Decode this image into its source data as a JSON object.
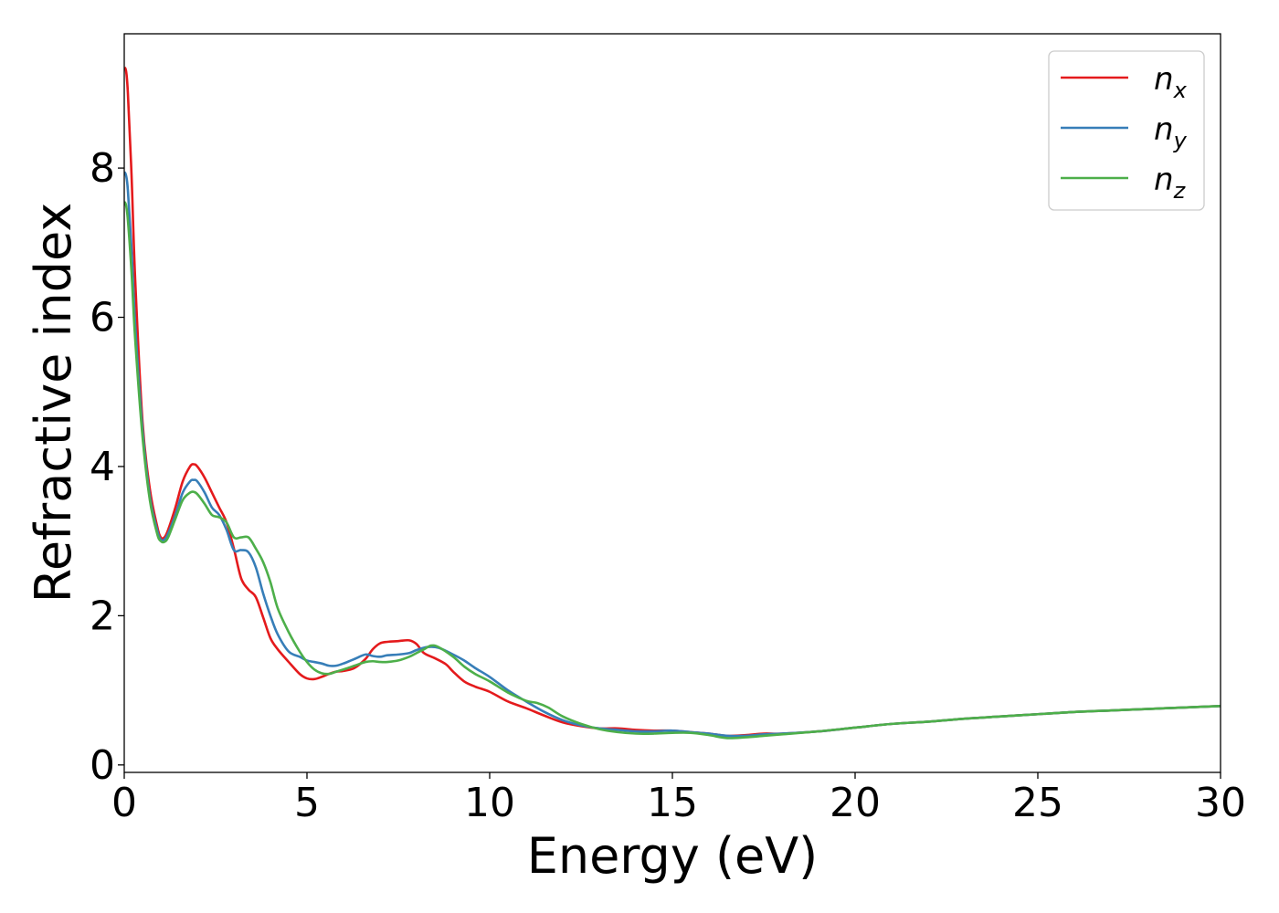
{
  "chart_data": {
    "type": "line",
    "title": "",
    "xlabel": "Energy (eV)",
    "ylabel": "Refractive index",
    "xlim": [
      0,
      30
    ],
    "ylim": [
      -0.1,
      9.8
    ],
    "xticks": [
      0,
      5,
      10,
      15,
      20,
      25,
      30
    ],
    "yticks": [
      0,
      2,
      4,
      6,
      8
    ],
    "xtick_labels": [
      "0",
      "5",
      "10",
      "15",
      "20",
      "25",
      "30"
    ],
    "ytick_labels": [
      "0",
      "2",
      "4",
      "6",
      "8"
    ],
    "grid": false,
    "legend_position": "top-right",
    "series": [
      {
        "name": "n_x",
        "legend_base": "n",
        "legend_sub": "x",
        "color": "#e41a1c",
        "x": [
          0,
          0.05,
          0.1,
          0.2,
          0.3,
          0.5,
          0.7,
          0.9,
          1.0,
          1.1,
          1.2,
          1.4,
          1.6,
          1.8,
          1.9,
          2.0,
          2.2,
          2.4,
          2.6,
          2.8,
          3.0,
          3.2,
          3.4,
          3.6,
          3.8,
          4.0,
          4.2,
          4.5,
          4.8,
          5.0,
          5.2,
          5.4,
          5.6,
          5.8,
          6.0,
          6.3,
          6.6,
          6.8,
          7.0,
          7.2,
          7.5,
          7.8,
          8.0,
          8.2,
          8.5,
          8.8,
          9.0,
          9.3,
          9.6,
          10.0,
          10.5,
          11.0,
          11.5,
          12.0,
          12.5,
          13.0,
          13.5,
          14.0,
          14.5,
          15.0,
          15.5,
          16.0,
          16.5,
          17.0,
          17.5,
          18.0,
          19.0,
          20.0,
          21.0,
          22.0,
          23.0,
          24.0,
          25.0,
          26.0,
          27.0,
          28.0,
          29.0,
          30.0
        ],
        "y": [
          9.35,
          9.3,
          9.0,
          7.9,
          6.5,
          4.6,
          3.7,
          3.2,
          3.05,
          3.05,
          3.15,
          3.45,
          3.8,
          4.0,
          4.03,
          4.0,
          3.85,
          3.65,
          3.45,
          3.25,
          2.9,
          2.5,
          2.35,
          2.25,
          1.98,
          1.7,
          1.55,
          1.38,
          1.22,
          1.16,
          1.15,
          1.18,
          1.22,
          1.25,
          1.26,
          1.3,
          1.42,
          1.55,
          1.63,
          1.65,
          1.66,
          1.67,
          1.62,
          1.5,
          1.43,
          1.35,
          1.25,
          1.12,
          1.05,
          0.98,
          0.85,
          0.76,
          0.66,
          0.57,
          0.52,
          0.49,
          0.49,
          0.47,
          0.46,
          0.46,
          0.44,
          0.42,
          0.39,
          0.4,
          0.42,
          0.42,
          0.45,
          0.5,
          0.55,
          0.58,
          0.62,
          0.65,
          0.68,
          0.71,
          0.73,
          0.75,
          0.77,
          0.79
        ]
      },
      {
        "name": "n_y",
        "legend_base": "n",
        "legend_sub": "y",
        "color": "#377eb8",
        "x": [
          0,
          0.05,
          0.1,
          0.2,
          0.3,
          0.5,
          0.7,
          0.9,
          1.0,
          1.1,
          1.2,
          1.4,
          1.6,
          1.8,
          1.9,
          2.0,
          2.2,
          2.4,
          2.6,
          2.8,
          3.0,
          3.2,
          3.4,
          3.6,
          3.8,
          4.0,
          4.2,
          4.5,
          4.8,
          5.0,
          5.2,
          5.4,
          5.6,
          5.8,
          6.0,
          6.3,
          6.6,
          6.8,
          7.0,
          7.2,
          7.5,
          7.8,
          8.0,
          8.3,
          8.6,
          9.0,
          9.3,
          9.6,
          10.0,
          10.5,
          11.0,
          11.5,
          12.0,
          12.5,
          13.0,
          13.5,
          14.0,
          14.5,
          15.0,
          15.5,
          16.0,
          16.5,
          17.0,
          17.5,
          18.0,
          19.0,
          20.0,
          21.0,
          22.0,
          23.0,
          24.0,
          25.0,
          26.0,
          27.0,
          28.0,
          29.0,
          30.0
        ],
        "y": [
          7.95,
          7.9,
          7.7,
          6.9,
          5.9,
          4.5,
          3.6,
          3.15,
          3.02,
          3.02,
          3.1,
          3.35,
          3.65,
          3.8,
          3.82,
          3.8,
          3.65,
          3.45,
          3.35,
          3.15,
          2.88,
          2.88,
          2.85,
          2.65,
          2.3,
          2.0,
          1.75,
          1.52,
          1.45,
          1.4,
          1.38,
          1.36,
          1.33,
          1.33,
          1.36,
          1.42,
          1.48,
          1.46,
          1.45,
          1.47,
          1.48,
          1.5,
          1.54,
          1.58,
          1.57,
          1.48,
          1.4,
          1.3,
          1.18,
          1.0,
          0.85,
          0.71,
          0.6,
          0.53,
          0.49,
          0.47,
          0.45,
          0.45,
          0.46,
          0.44,
          0.42,
          0.39,
          0.39,
          0.41,
          0.42,
          0.45,
          0.5,
          0.55,
          0.58,
          0.62,
          0.65,
          0.68,
          0.71,
          0.73,
          0.75,
          0.77,
          0.79
        ]
      },
      {
        "name": "n_z",
        "legend_base": "n",
        "legend_sub": "z",
        "color": "#4daf4a",
        "x": [
          0,
          0.05,
          0.1,
          0.2,
          0.3,
          0.5,
          0.7,
          0.9,
          1.0,
          1.1,
          1.2,
          1.4,
          1.6,
          1.8,
          1.9,
          2.0,
          2.2,
          2.4,
          2.6,
          2.8,
          3.0,
          3.2,
          3.4,
          3.6,
          3.8,
          4.0,
          4.2,
          4.5,
          4.8,
          5.0,
          5.2,
          5.4,
          5.6,
          5.8,
          6.0,
          6.3,
          6.6,
          6.8,
          7.0,
          7.2,
          7.5,
          7.8,
          8.0,
          8.2,
          8.4,
          8.6,
          9.0,
          9.3,
          9.6,
          10.0,
          10.5,
          11.0,
          11.3,
          11.6,
          12.0,
          12.5,
          13.0,
          13.5,
          14.0,
          14.5,
          15.0,
          15.5,
          16.0,
          16.5,
          17.0,
          17.5,
          18.0,
          19.0,
          20.0,
          21.0,
          22.0,
          23.0,
          24.0,
          25.0,
          26.0,
          27.0,
          28.0,
          29.0,
          30.0
        ],
        "y": [
          7.55,
          7.5,
          7.3,
          6.6,
          5.7,
          4.4,
          3.55,
          3.1,
          3.0,
          2.99,
          3.05,
          3.3,
          3.55,
          3.65,
          3.66,
          3.63,
          3.5,
          3.35,
          3.32,
          3.25,
          3.05,
          3.05,
          3.05,
          2.9,
          2.72,
          2.45,
          2.1,
          1.78,
          1.52,
          1.38,
          1.28,
          1.23,
          1.22,
          1.25,
          1.28,
          1.33,
          1.38,
          1.39,
          1.38,
          1.38,
          1.4,
          1.45,
          1.5,
          1.55,
          1.6,
          1.58,
          1.45,
          1.32,
          1.22,
          1.12,
          0.97,
          0.86,
          0.83,
          0.77,
          0.65,
          0.55,
          0.48,
          0.44,
          0.42,
          0.42,
          0.43,
          0.43,
          0.4,
          0.36,
          0.37,
          0.39,
          0.41,
          0.45,
          0.5,
          0.55,
          0.58,
          0.62,
          0.65,
          0.68,
          0.71,
          0.73,
          0.75,
          0.77,
          0.79
        ]
      }
    ]
  }
}
